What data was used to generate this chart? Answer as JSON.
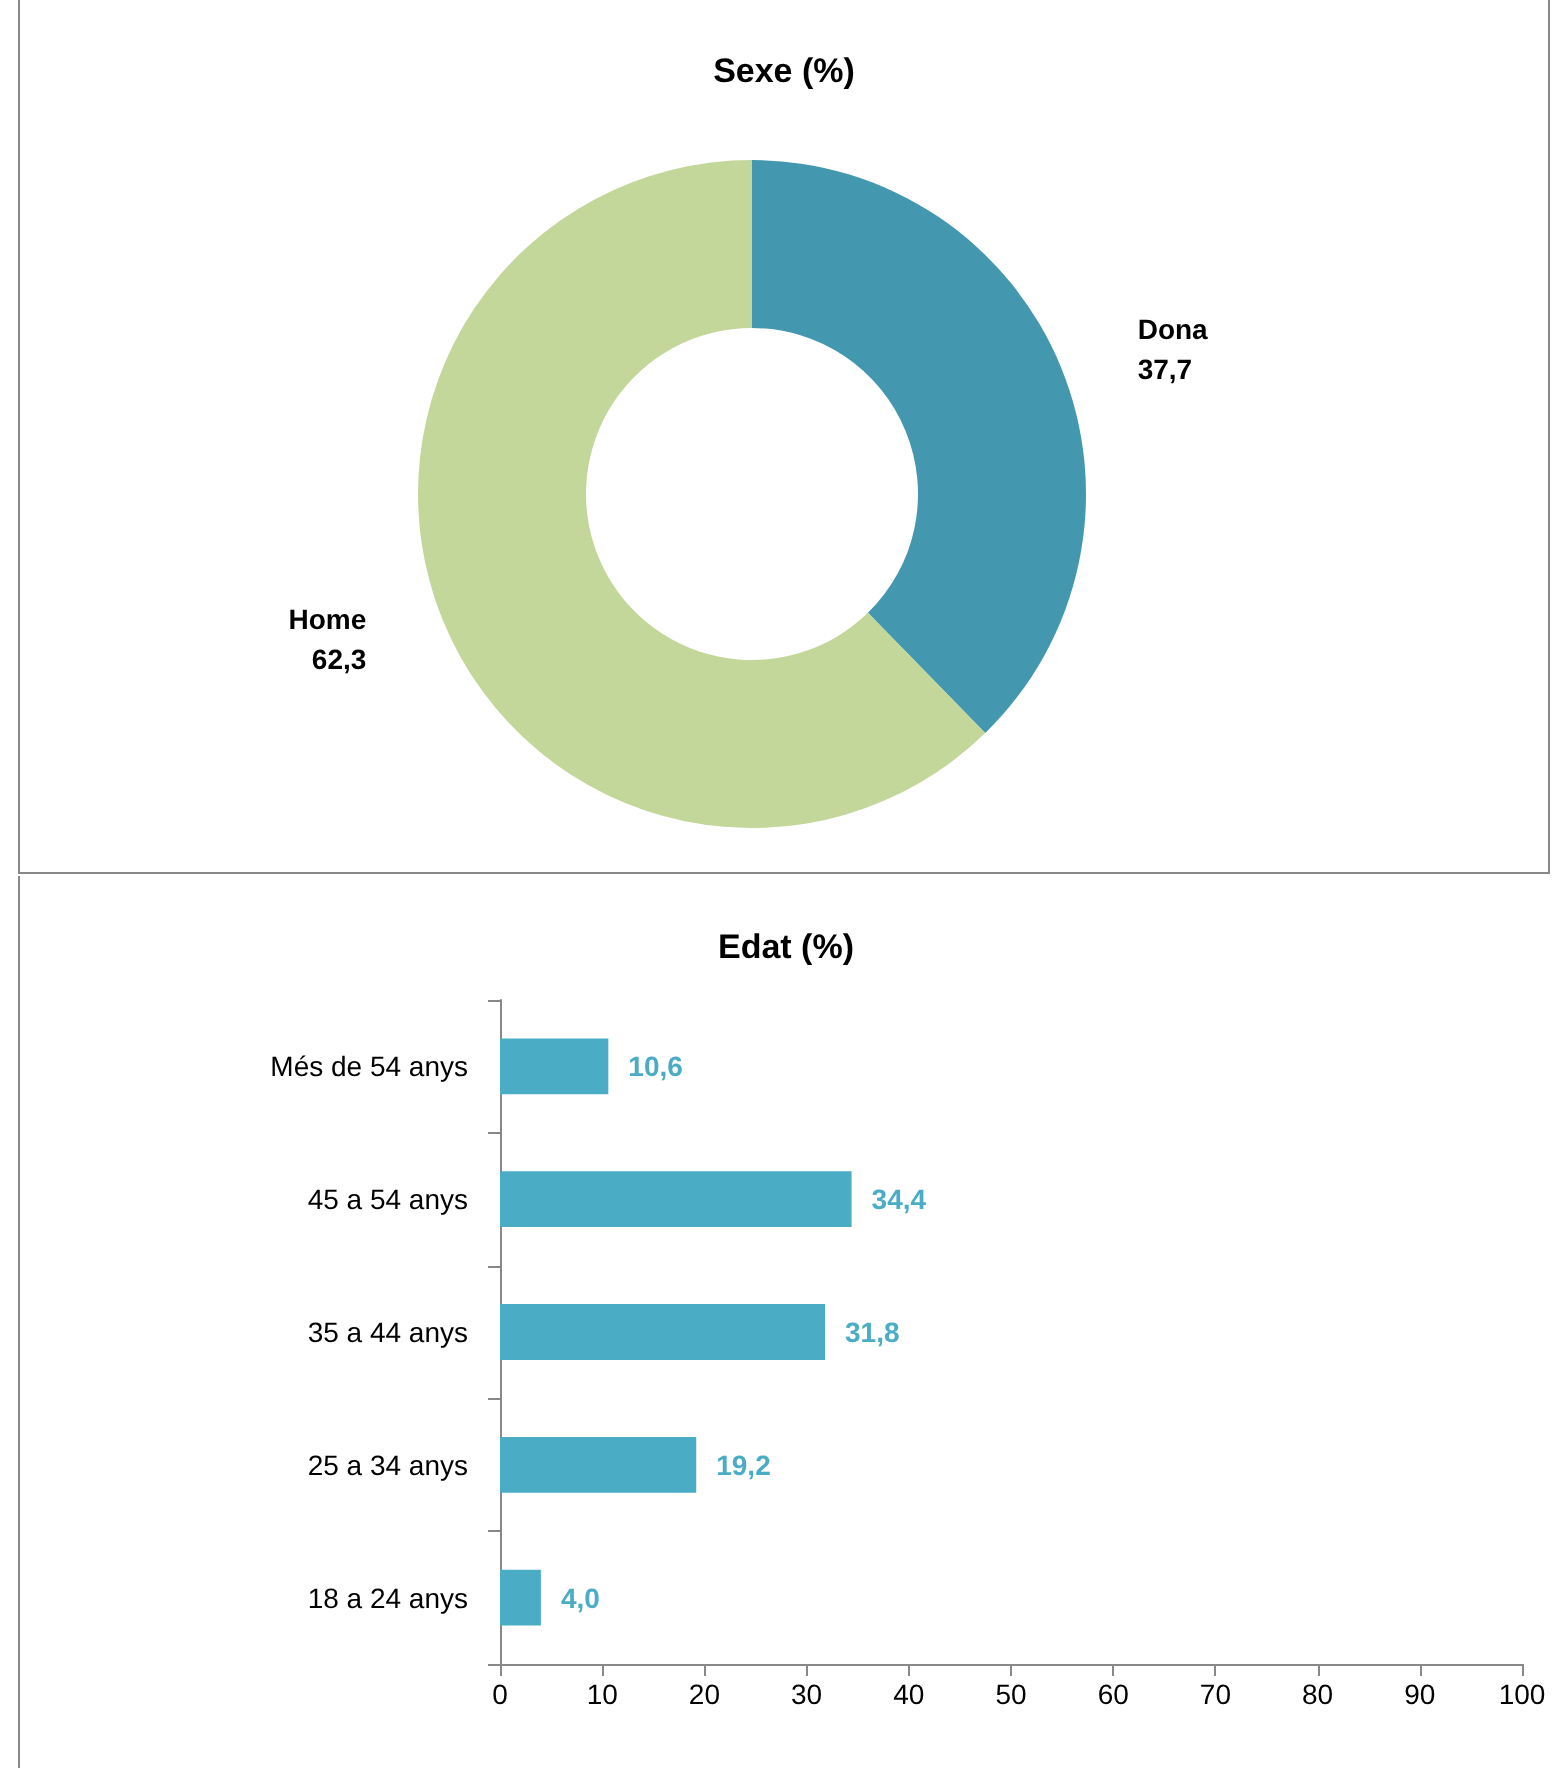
{
  "chart_data": [
    {
      "type": "donut",
      "title": "Sexe (%)",
      "categories": [
        "Dona",
        "Home"
      ],
      "values": [
        37.7,
        62.3
      ],
      "colors": [
        "#4398b0",
        "#c4d79b"
      ],
      "value_labels": [
        "37,7",
        "62,3"
      ],
      "legend": false
    },
    {
      "type": "bar",
      "orientation": "horizontal",
      "title": "Edat (%)",
      "categories": [
        "Més de 54 anys",
        "45 a 54 anys",
        "35 a 44 anys",
        "25 a 34 anys",
        "18 a 24 anys"
      ],
      "series": [
        {
          "color": "#4bacc6",
          "values": [
            10.6,
            34.4,
            31.8,
            19.2,
            4.0
          ],
          "value_labels": [
            "10,6",
            "34,4",
            "31,8",
            "19,2",
            "4,0"
          ]
        }
      ],
      "xlim": [
        0,
        100
      ],
      "xticks": [
        0,
        10,
        20,
        30,
        40,
        50,
        60,
        70,
        80,
        90,
        100
      ],
      "grid": false,
      "legend": false
    }
  ]
}
